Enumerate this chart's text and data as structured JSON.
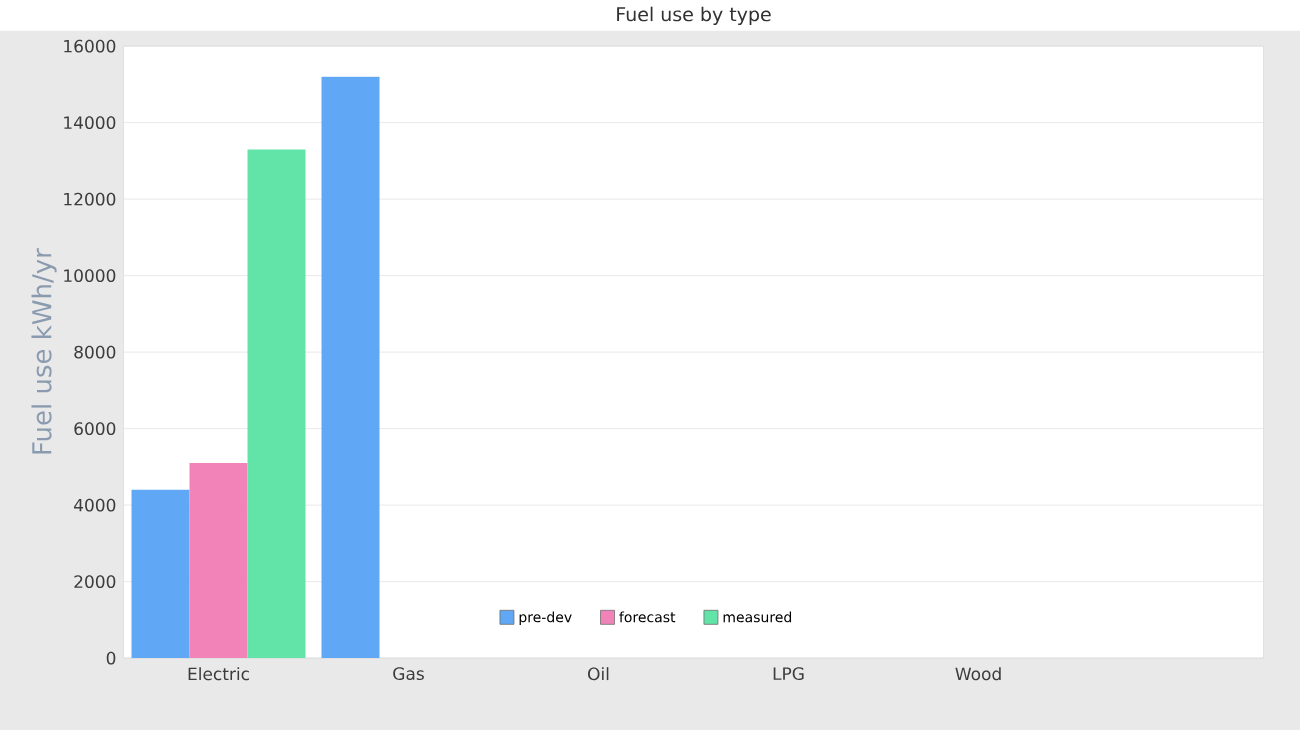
{
  "chart_data": {
    "type": "bar",
    "title": "Fuel use by type",
    "ylabel": "Fuel use kWh/yr",
    "categories": [
      "Electric",
      "Gas",
      "Oil",
      "LPG",
      "Wood",
      null
    ],
    "series": [
      {
        "name": "pre-dev",
        "color": "#60a8f5",
        "values": [
          4400,
          15200,
          null,
          null,
          null,
          null
        ]
      },
      {
        "name": "forecast",
        "color": "#f283b9",
        "values": [
          5100,
          null,
          null,
          null,
          null,
          null
        ]
      },
      {
        "name": "measured",
        "color": "#62e3a8",
        "values": [
          13300,
          null,
          null,
          null,
          null,
          null
        ]
      }
    ],
    "ylim": [
      0,
      16000
    ],
    "yticks": [
      0,
      2000,
      4000,
      6000,
      8000,
      10000,
      12000,
      14000,
      16000
    ],
    "grid": "y",
    "legend": "bottom"
  }
}
